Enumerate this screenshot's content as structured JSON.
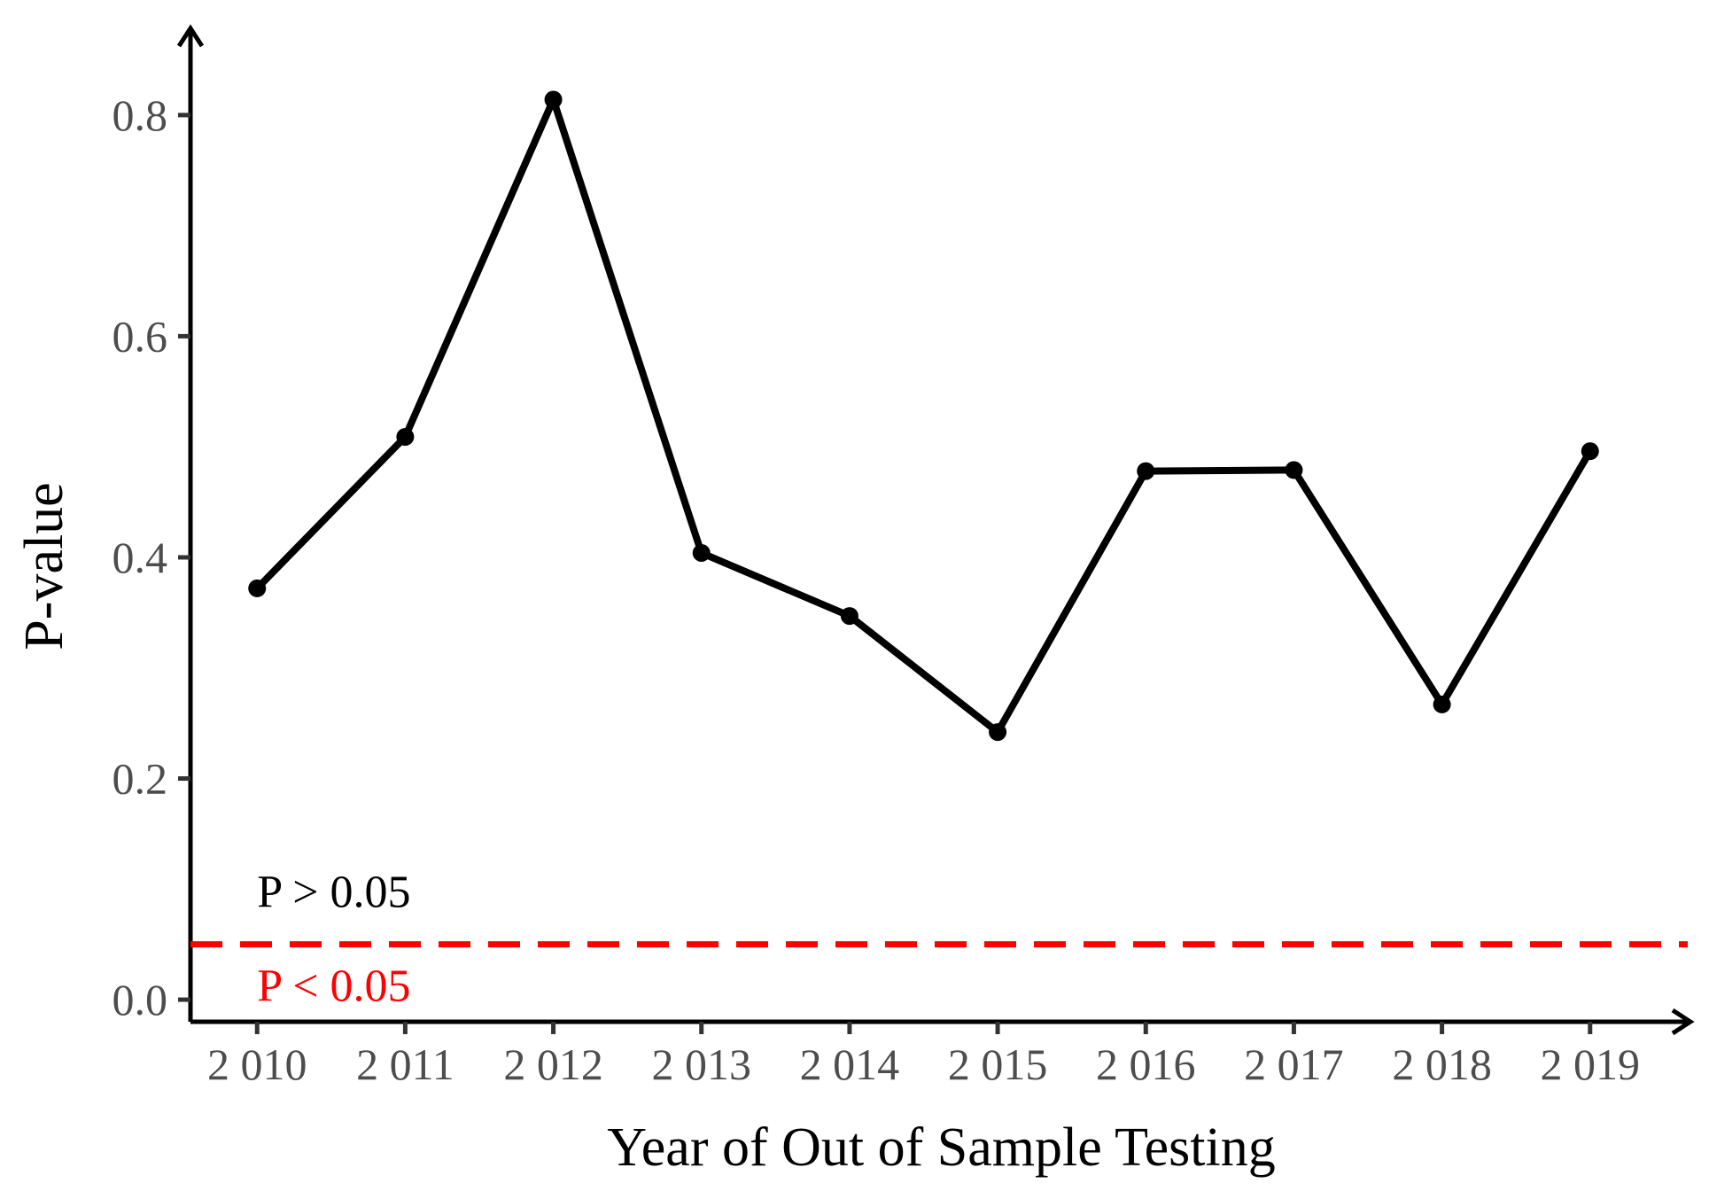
{
  "chart_data": {
    "type": "line",
    "xlabel": "Year of Out of Sample Testing",
    "ylabel": "P-value",
    "x": [
      2010,
      2011,
      2012,
      2013,
      2014,
      2015,
      2016,
      2017,
      2018,
      2019
    ],
    "x_tick_labels": [
      "2 010",
      "2 011",
      "2 012",
      "2 013",
      "2 014",
      "2 015",
      "2 016",
      "2 017",
      "2 018",
      "2 019"
    ],
    "y_ticks": [
      0.0,
      0.2,
      0.4,
      0.6,
      0.8
    ],
    "y_tick_labels": [
      "0.0",
      "0.2",
      "0.4",
      "0.6",
      "0.8"
    ],
    "ylim": [
      -0.02,
      0.86
    ],
    "xlim": [
      2009.55,
      2019.45
    ],
    "series": [
      {
        "values": [
          0.372,
          0.509,
          0.814,
          0.404,
          0.347,
          0.242,
          0.478,
          0.479,
          0.267,
          0.496
        ],
        "color": "#000000"
      }
    ],
    "reference_line": {
      "y": 0.05,
      "color": "#ff0000",
      "style": "dashed"
    },
    "annotations": [
      {
        "text": "P > 0.05",
        "x": 2010,
        "y": 0.095,
        "color": "#000000"
      },
      {
        "text": "P < 0.05",
        "x": 2010,
        "y": 0.01,
        "color": "#ff0000"
      }
    ],
    "grid": false,
    "legend": "none"
  }
}
